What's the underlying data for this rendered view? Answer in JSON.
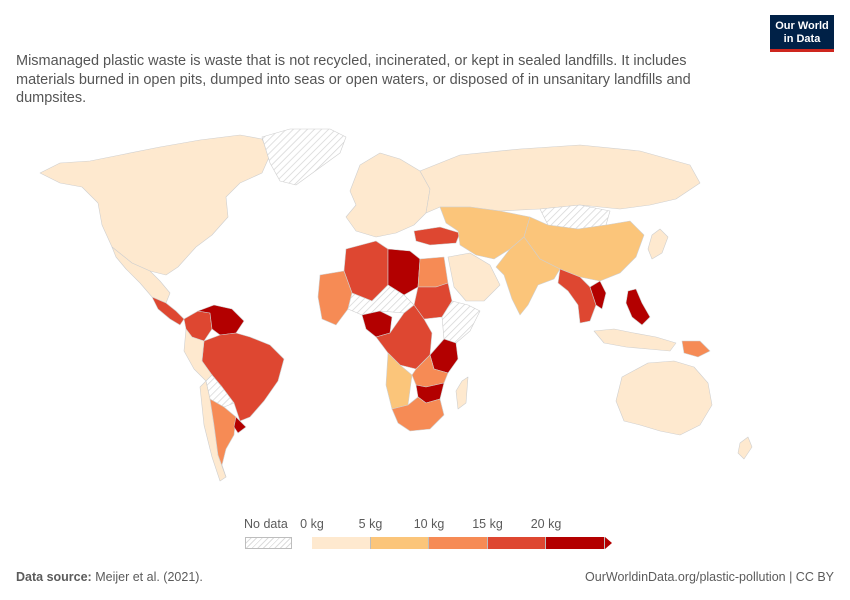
{
  "subtitle": "Mismanaged plastic waste is waste that is not recycled, incinerated, or kept in sealed landfills. It includes materials burned in open pits, dumped into seas or open waters, or disposed of in unsanitary landfills and dumpsites.",
  "logo": {
    "line1": "Our World",
    "line2": "in Data",
    "bg_color": "#002147",
    "accent_color": "#ce261e"
  },
  "legend": {
    "nodata_label": "No data",
    "ticks": [
      "0 kg",
      "5 kg",
      "10 kg",
      "15 kg",
      "20 kg"
    ],
    "bin_colors": [
      "#fee9cf",
      "#fbc57a",
      "#f68b55",
      "#de4731",
      "#b30000"
    ]
  },
  "colors": {
    "ocean": "#ffffff",
    "nodata": "#e6e6e6",
    "border": "#cfcfcf"
  },
  "footer": {
    "source_label": "Data source:",
    "source_value": "Meijer et al. (2021).",
    "url": "OurWorldinData.org/plastic-pollution | CC BY"
  },
  "regions": [
    {
      "name": "Canada & USA",
      "bin": 0
    },
    {
      "name": "Greenland",
      "bin": -1
    },
    {
      "name": "Mexico",
      "bin": 0
    },
    {
      "name": "Central America",
      "bin": 3
    },
    {
      "name": "Venezuela",
      "bin": 4
    },
    {
      "name": "Colombia",
      "bin": 3
    },
    {
      "name": "Brazil",
      "bin": 3
    },
    {
      "name": "Peru",
      "bin": 0
    },
    {
      "name": "Bolivia",
      "bin": -1
    },
    {
      "name": "Argentina",
      "bin": 2
    },
    {
      "name": "Chile",
      "bin": 0
    },
    {
      "name": "Uruguay",
      "bin": 4
    },
    {
      "name": "Europe",
      "bin": 0
    },
    {
      "name": "Russia",
      "bin": 0
    },
    {
      "name": "Turkey",
      "bin": 3
    },
    {
      "name": "Algeria",
      "bin": 3
    },
    {
      "name": "Libya",
      "bin": 4
    },
    {
      "name": "Egypt",
      "bin": 2
    },
    {
      "name": "Sudan",
      "bin": 3
    },
    {
      "name": "West Africa",
      "bin": 2
    },
    {
      "name": "Sahel",
      "bin": -1
    },
    {
      "name": "Nigeria",
      "bin": 4
    },
    {
      "name": "Central Africa",
      "bin": 3
    },
    {
      "name": "Tanzania",
      "bin": 4
    },
    {
      "name": "Horn of Africa",
      "bin": -1
    },
    {
      "name": "Angola",
      "bin": 1
    },
    {
      "name": "Zambia",
      "bin": 2
    },
    {
      "name": "Zimbabwe",
      "bin": 4
    },
    {
      "name": "South Africa",
      "bin": 2
    },
    {
      "name": "Arabia",
      "bin": 0
    },
    {
      "name": "Iran & Central Asia",
      "bin": 1
    },
    {
      "name": "China",
      "bin": 1
    },
    {
      "name": "Mongolia",
      "bin": -1
    },
    {
      "name": "India",
      "bin": 1
    },
    {
      "name": "Southeast Asia",
      "bin": 3
    },
    {
      "name": "Vietnam",
      "bin": 4
    },
    {
      "name": "Philippines",
      "bin": 4
    },
    {
      "name": "Indonesia",
      "bin": 0
    },
    {
      "name": "Papua New Guinea",
      "bin": 2
    },
    {
      "name": "Japan",
      "bin": 0
    },
    {
      "name": "Australia",
      "bin": 0
    },
    {
      "name": "Madagascar",
      "bin": 0
    }
  ]
}
